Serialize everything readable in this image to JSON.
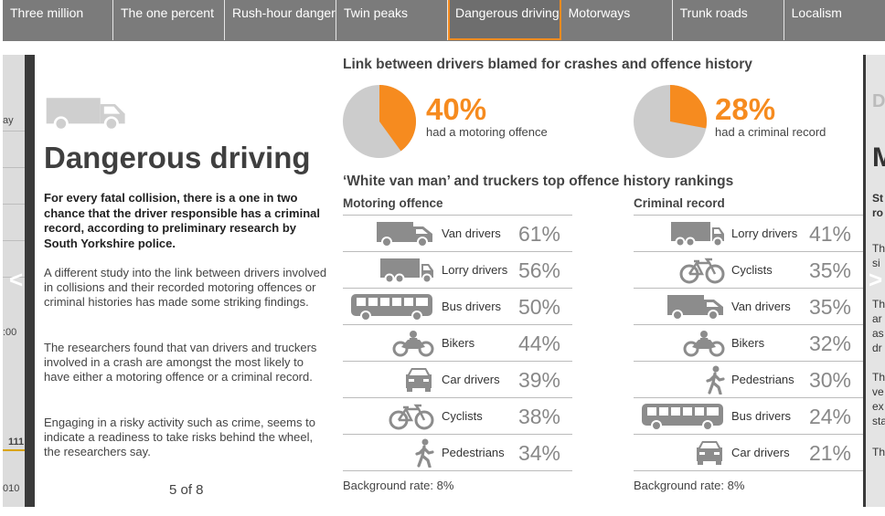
{
  "tabs": [
    {
      "label": "Three million",
      "active": false
    },
    {
      "label": "The one percent",
      "active": false
    },
    {
      "label": "Rush-hour danger",
      "active": false
    },
    {
      "label": "Twin peaks",
      "active": false
    },
    {
      "label": "Dangerous driving",
      "active": true
    },
    {
      "label": "Motorways",
      "active": false
    },
    {
      "label": "Trunk roads",
      "active": false
    },
    {
      "label": "Localism",
      "active": false
    }
  ],
  "left_peek": {
    "t1": "ay",
    "t2": ":00",
    "t3": "111",
    "t4": "010"
  },
  "right_peek": {
    "t1": "D",
    "t2": "M",
    "t3": "St",
    "t4": "ro",
    "t5": "Th",
    "t6": "si",
    "t7": "Th",
    "t8": "ar",
    "t9": "as",
    "t10": "dr",
    "t11": "Th",
    "t12": "ve",
    "t13": "ex",
    "t14": "sta",
    "t15": "Th"
  },
  "nav": {
    "prev": "<",
    "next": ">"
  },
  "story": {
    "hero_icon": "van-icon",
    "title": "Dangerous driving",
    "lede": "For every fatal collision, there is a one in two chance that the driver responsible has a criminal record, according to preliminary research by South Yorkshire police.",
    "paragraphs": [
      "A different study into the link between drivers involved in collisions and their recorded motoring offences or criminal histories has made some striking findings.",
      "The researchers found that van drivers and truckers involved in a crash are amongst the most likely to have either a motoring offence or a criminal record.",
      "Engaging in a risky activity such as crime, seems to indicate a readiness to take risks behind the wheel, the researchers say."
    ],
    "pager": "5 of 8"
  },
  "colors": {
    "accent": "#f68b1f",
    "pie_base": "#cccccc",
    "icon": "#8c8c8c"
  },
  "link_section": {
    "heading": "Link between drivers blamed for crashes and offence history",
    "stats": [
      {
        "percent_value": 40,
        "percent": "40%",
        "label": "had a motoring offence"
      },
      {
        "percent_value": 28,
        "percent": "28%",
        "label": "had a criminal record"
      }
    ]
  },
  "rankings": {
    "heading": "‘White van man’ and truckers top offence history rankings",
    "columns": [
      {
        "title": "Motoring offence",
        "background_rate": "Background rate: 8%",
        "rows": [
          {
            "icon": "van-icon",
            "label": "Van drivers",
            "value": "61%"
          },
          {
            "icon": "lorry-icon",
            "label": "Lorry drivers",
            "value": "56%"
          },
          {
            "icon": "bus-icon",
            "label": "Bus drivers",
            "value": "50%"
          },
          {
            "icon": "motorbike-icon",
            "label": "Bikers",
            "value": "44%"
          },
          {
            "icon": "car-icon",
            "label": "Car drivers",
            "value": "39%"
          },
          {
            "icon": "bicycle-icon",
            "label": "Cyclists",
            "value": "38%"
          },
          {
            "icon": "pedestrian-icon",
            "label": "Pedestrians",
            "value": "34%"
          }
        ]
      },
      {
        "title": "Criminal record",
        "background_rate": "Background rate: 8%",
        "rows": [
          {
            "icon": "lorry-icon",
            "label": "Lorry drivers",
            "value": "41%"
          },
          {
            "icon": "bicycle-icon",
            "label": "Cyclists",
            "value": "35%"
          },
          {
            "icon": "van-icon",
            "label": "Van drivers",
            "value": "35%"
          },
          {
            "icon": "motorbike-icon",
            "label": "Bikers",
            "value": "32%"
          },
          {
            "icon": "pedestrian-icon",
            "label": "Pedestrians",
            "value": "30%"
          },
          {
            "icon": "bus-icon",
            "label": "Bus drivers",
            "value": "24%"
          },
          {
            "icon": "car-icon",
            "label": "Car drivers",
            "value": "21%"
          }
        ]
      }
    ]
  }
}
